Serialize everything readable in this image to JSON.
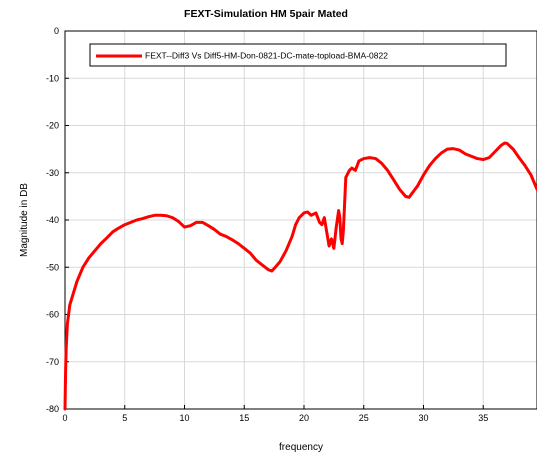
{
  "chart_data": {
    "type": "line",
    "title": "FEXT-Simulation HM 5pair Mated",
    "xlabel": "frequency",
    "ylabel": "Magnitude in DB",
    "xlim": [
      0,
      39.5
    ],
    "ylim": [
      -80,
      0
    ],
    "xticks": [
      0,
      5,
      10,
      15,
      20,
      25,
      30,
      35
    ],
    "yticks": [
      0,
      -10,
      -20,
      -30,
      -40,
      -50,
      -60,
      -70,
      -80
    ],
    "grid": true,
    "legend_position": "top",
    "series": [
      {
        "name": "FEXT--Diff3 Vs Diff5-HM-Don-0821-DC-mate-topload-BMA-0822",
        "color": "#ff0000",
        "x": [
          0.0,
          0.05,
          0.1,
          0.2,
          0.4,
          0.7,
          1.0,
          1.5,
          2.0,
          2.5,
          3.0,
          3.5,
          4.0,
          4.5,
          5.0,
          5.5,
          6.0,
          6.5,
          7.0,
          7.5,
          8.0,
          8.5,
          9.0,
          9.5,
          10.0,
          10.5,
          11.0,
          11.5,
          12.0,
          12.5,
          13.0,
          13.5,
          14.0,
          14.5,
          15.0,
          15.5,
          16.0,
          16.5,
          17.0,
          17.3,
          17.6,
          18.0,
          18.5,
          19.0,
          19.3,
          19.6,
          20.0,
          20.3,
          20.6,
          21.0,
          21.3,
          21.5,
          21.7,
          21.9,
          22.1,
          22.3,
          22.5,
          22.7,
          22.9,
          23.0,
          23.1,
          23.2,
          23.3,
          23.5,
          23.8,
          24.0,
          24.3,
          24.6,
          25.0,
          25.5,
          26.0,
          26.5,
          27.0,
          27.5,
          28.0,
          28.5,
          28.8,
          29.0,
          29.5,
          30.0,
          30.5,
          31.0,
          31.5,
          32.0,
          32.5,
          33.0,
          33.5,
          34.0,
          34.5,
          35.0,
          35.5,
          36.0,
          36.5,
          36.8,
          37.0,
          37.5,
          38.0,
          38.5,
          39.0,
          39.5
        ],
        "y": [
          -80,
          -72,
          -67,
          -62,
          -58,
          -55.5,
          -53,
          -50,
          -48,
          -46.5,
          -45,
          -43.8,
          -42.5,
          -41.7,
          -41.0,
          -40.5,
          -40.0,
          -39.7,
          -39.3,
          -39.0,
          -39.0,
          -39.1,
          -39.5,
          -40.3,
          -41.5,
          -41.2,
          -40.5,
          -40.5,
          -41.2,
          -42.0,
          -43.0,
          -43.5,
          -44.2,
          -45.0,
          -46.0,
          -47.0,
          -48.5,
          -49.5,
          -50.5,
          -50.8,
          -50.0,
          -48.8,
          -46.5,
          -43.5,
          -41.0,
          -39.5,
          -38.5,
          -38.3,
          -39.0,
          -38.5,
          -40.5,
          -41.0,
          -39.5,
          -42.5,
          -45.5,
          -44.0,
          -46.0,
          -41.5,
          -38.0,
          -39.5,
          -44.0,
          -45.0,
          -42.0,
          -31.0,
          -29.5,
          -29.0,
          -29.5,
          -27.5,
          -27.0,
          -26.8,
          -27.0,
          -28.0,
          -29.5,
          -31.5,
          -33.5,
          -35.0,
          -35.2,
          -34.5,
          -32.8,
          -30.5,
          -28.5,
          -27.0,
          -25.8,
          -25.0,
          -24.9,
          -25.2,
          -26.0,
          -26.5,
          -27.0,
          -27.2,
          -26.8,
          -25.5,
          -24.2,
          -23.7,
          -23.8,
          -25.0,
          -26.8,
          -28.5,
          -30.5,
          -33.5
        ]
      }
    ]
  }
}
